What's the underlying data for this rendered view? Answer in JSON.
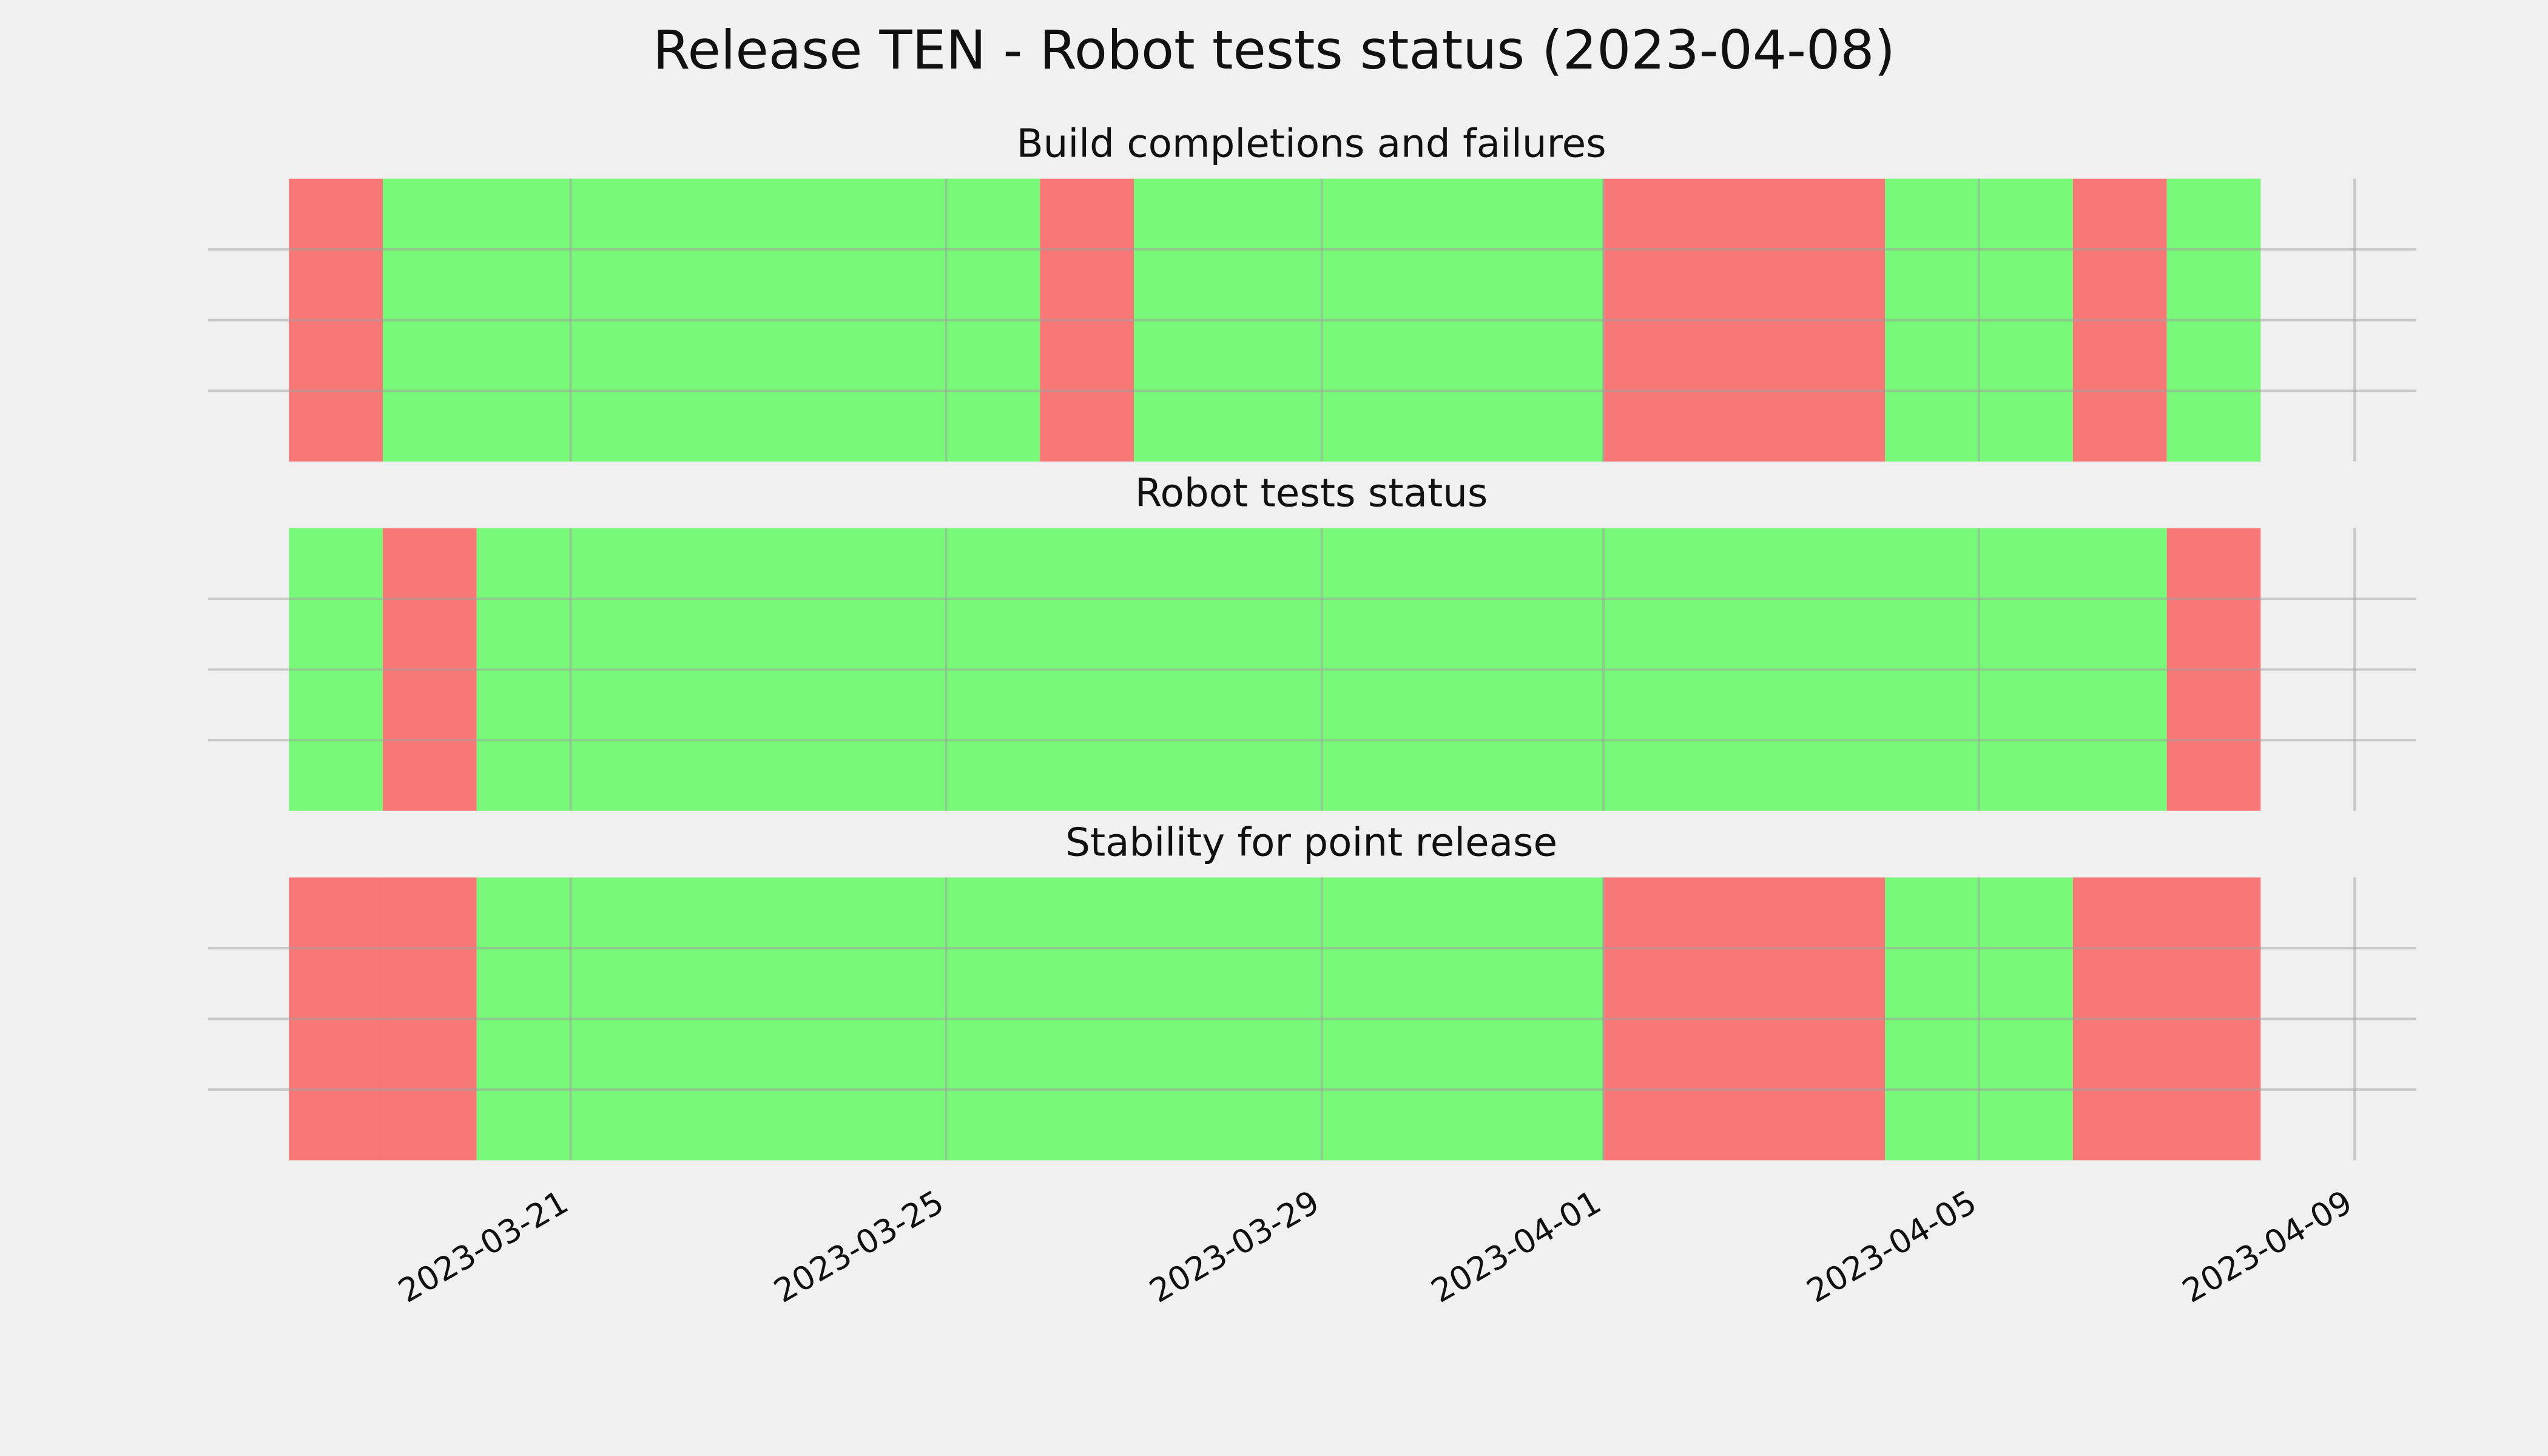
{
  "chart_data": [
    {
      "type": "timeline",
      "title": "Release TEN - Robot tests status (2023-04-08)",
      "subtitle": "Build completions and failures",
      "segments": [
        {
          "start": "2023-03-18",
          "end": "2023-03-19",
          "color": "#f87878"
        },
        {
          "start": "2023-03-19",
          "end": "2023-03-26",
          "color": "#78f878"
        },
        {
          "start": "2023-03-26",
          "end": "2023-03-27",
          "color": "#f87878"
        },
        {
          "start": "2023-03-27",
          "end": "2023-04-01",
          "color": "#78f878"
        },
        {
          "start": "2023-04-01",
          "end": "2023-04-04",
          "color": "#f87878"
        },
        {
          "start": "2023-04-04",
          "end": "2023-04-06",
          "color": "#78f878"
        },
        {
          "start": "2023-04-06",
          "end": "2023-04-07",
          "color": "#f87878"
        },
        {
          "start": "2023-04-07",
          "end": "2023-04-08",
          "color": "#78f878"
        }
      ],
      "xlim": [
        "2023-03-17",
        "2023-04-10"
      ],
      "xticks": [
        "2023-03-21",
        "2023-03-25",
        "2023-03-29",
        "2023-04-01",
        "2023-04-05",
        "2023-04-09"
      ],
      "ylim": [
        0,
        1
      ],
      "yticks": [
        0.25,
        0.5,
        0.75
      ],
      "grid": true
    },
    {
      "type": "timeline",
      "subtitle": "Robot tests status",
      "segments": [
        {
          "start": "2023-03-18",
          "end": "2023-03-19",
          "color": "#78f878"
        },
        {
          "start": "2023-03-19",
          "end": "2023-03-20",
          "color": "#f87878"
        },
        {
          "start": "2023-03-20",
          "end": "2023-04-07",
          "color": "#78f878"
        },
        {
          "start": "2023-04-07",
          "end": "2023-04-08",
          "color": "#f87878"
        }
      ],
      "xlim": [
        "2023-03-17",
        "2023-04-10"
      ],
      "xticks": [
        "2023-03-21",
        "2023-03-25",
        "2023-03-29",
        "2023-04-01",
        "2023-04-05",
        "2023-04-09"
      ],
      "ylim": [
        0,
        1
      ],
      "yticks": [
        0.25,
        0.5,
        0.75
      ],
      "grid": true
    },
    {
      "type": "timeline",
      "subtitle": "Stability for point release",
      "segments": [
        {
          "start": "2023-03-18",
          "end": "2023-03-19",
          "color": "#f87878"
        },
        {
          "start": "2023-03-19",
          "end": "2023-03-20",
          "color": "#f87878"
        },
        {
          "start": "2023-03-20",
          "end": "2023-04-01",
          "color": "#78f878"
        },
        {
          "start": "2023-04-01",
          "end": "2023-04-04",
          "color": "#f87878"
        },
        {
          "start": "2023-04-04",
          "end": "2023-04-06",
          "color": "#78f878"
        },
        {
          "start": "2023-04-06",
          "end": "2023-04-08",
          "color": "#f87878"
        }
      ],
      "xlim": [
        "2023-03-17",
        "2023-04-10"
      ],
      "xticks": [
        "2023-03-21",
        "2023-03-25",
        "2023-03-29",
        "2023-04-01",
        "2023-04-05",
        "2023-04-09"
      ],
      "ylim": [
        0,
        1
      ],
      "yticks": [
        0.25,
        0.5,
        0.75
      ],
      "grid": true,
      "show_xticklabels": true
    }
  ]
}
